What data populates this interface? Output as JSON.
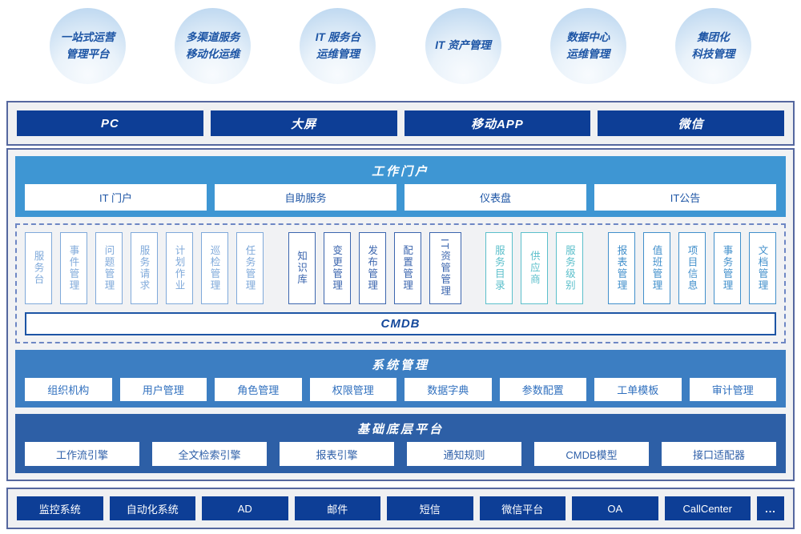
{
  "bubbles": [
    {
      "lines": [
        "一站式运营",
        "管理平台"
      ]
    },
    {
      "lines": [
        "多渠道服务",
        "移动化运维"
      ]
    },
    {
      "lines": [
        "IT 服务台",
        "运维管理"
      ]
    },
    {
      "lines": [
        "IT 资产管理"
      ]
    },
    {
      "lines": [
        "数据中心",
        "运维管理"
      ]
    },
    {
      "lines": [
        "集团化",
        "科技管理"
      ]
    }
  ],
  "channels": [
    "PC",
    "大屏",
    "移动APP",
    "微信"
  ],
  "portal": {
    "title": "工作门户",
    "items": [
      "IT 门户",
      "自助服务",
      "仪表盘",
      "IT公告"
    ]
  },
  "modules": {
    "groups": [
      {
        "color": "#7fa9da",
        "items": [
          "服务台",
          "事件管理",
          "问题管理",
          "服务请求",
          "计划作业",
          "巡检管理",
          "任务管理"
        ]
      },
      {
        "color": "#3c66ae",
        "items": [
          "知识库",
          "变更管理",
          "发布管理",
          "配置管理",
          "IT资管管理"
        ]
      },
      {
        "color": "#5bbfcb",
        "items": [
          "服务目录",
          "供应商",
          "服务级别"
        ]
      },
      {
        "color": "#418fcb",
        "items": [
          "报表管理",
          "值班管理",
          "项目信息",
          "事务管理",
          "文档管理"
        ]
      }
    ],
    "cmdb_label": "CMDB"
  },
  "system": {
    "title": "系统管理",
    "items": [
      "组织机构",
      "用户管理",
      "角色管理",
      "权限管理",
      "数据字典",
      "参数配置",
      "工单模板",
      "审计管理"
    ]
  },
  "base": {
    "title": "基础底层平台",
    "items": [
      "工作流引擎",
      "全文检索引擎",
      "报表引擎",
      "通知规则",
      "CMDB模型",
      "接口适配器"
    ]
  },
  "integration": {
    "items": [
      "监控系统",
      "自动化系统",
      "AD",
      "邮件",
      "短信",
      "微信平台",
      "OA",
      "CallCenter"
    ],
    "more_label": "..."
  },
  "colors": {
    "dark_navy_button": "#0d3e96",
    "portal_section_bg": "#3e96d3",
    "system_section_bg": "#3c7ec2",
    "base_section_bg": "#2d5fa6",
    "outer_box_border": "#55679f",
    "dashed_border": "#6e87c4",
    "cmdb_border": "#1d55a5",
    "bubble_text": "#1d55a5",
    "box_fill": "#eff0f2"
  }
}
